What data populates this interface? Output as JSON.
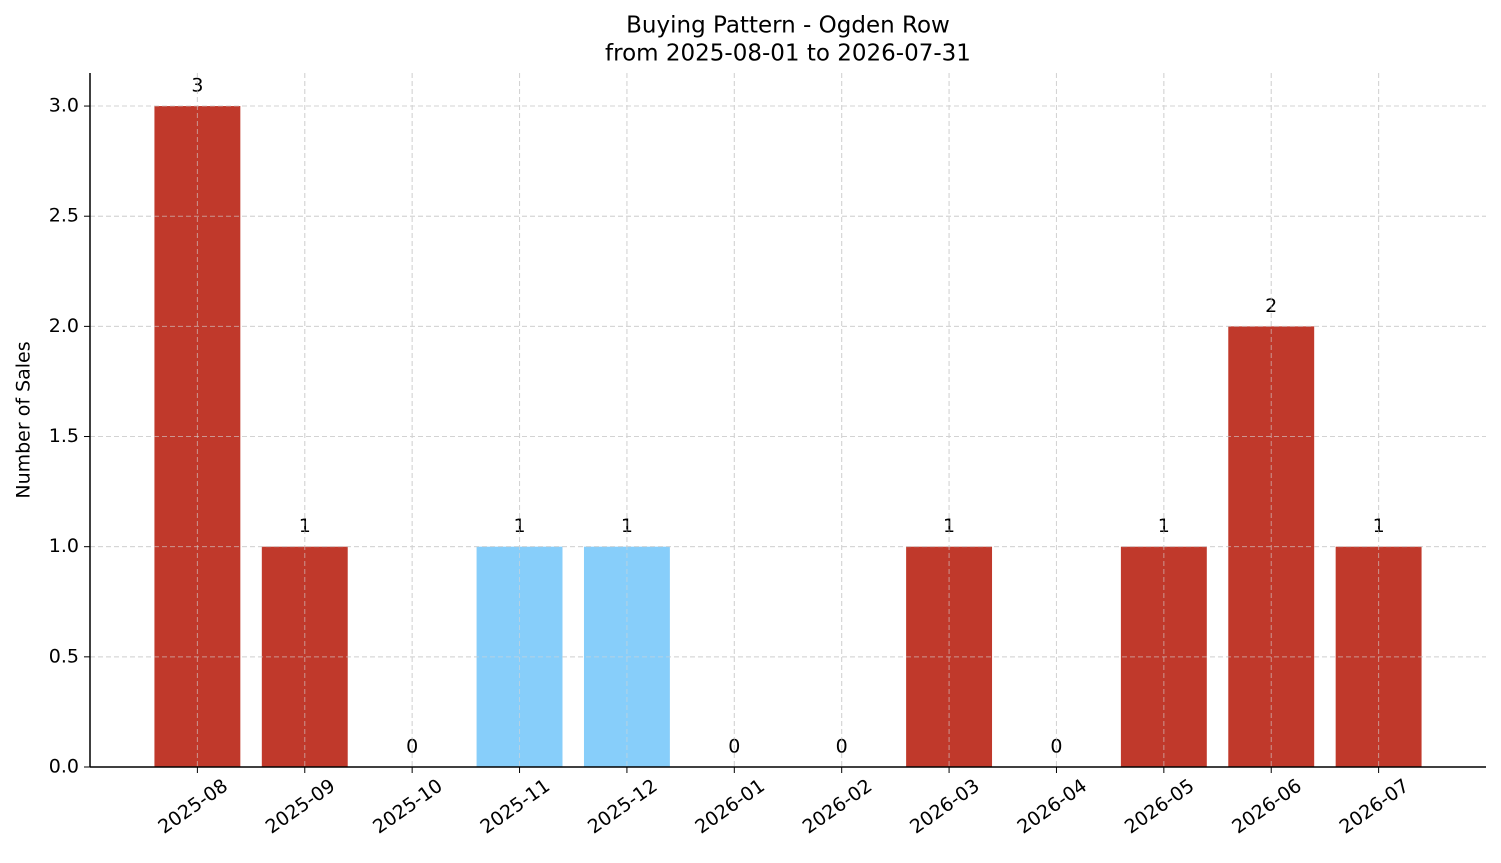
{
  "chart_data": {
    "type": "bar",
    "title": "Buying Pattern - Ogden Row",
    "subtitle": "from 2025-08-01 to 2026-07-31",
    "y_label": "Number of Sales",
    "categories": [
      "2025-08",
      "2025-09",
      "2025-10",
      "2025-11",
      "2025-12",
      "2026-01",
      "2026-02",
      "2026-03",
      "2026-04",
      "2026-05",
      "2026-06",
      "2026-07"
    ],
    "values": [
      3,
      1,
      0,
      1,
      1,
      0,
      0,
      1,
      0,
      1,
      2,
      1
    ],
    "colors": [
      "#c0392b",
      "#c0392b",
      "#c0392b",
      "#87cefa",
      "#87cefa",
      "#c0392b",
      "#c0392b",
      "#c0392b",
      "#c0392b",
      "#c0392b",
      "#c0392b",
      "#c0392b"
    ],
    "ylim": [
      0,
      3.15
    ],
    "yticks": [
      {
        "value": 0,
        "label": "0.0"
      },
      {
        "value": 0.5,
        "label": "0.5"
      },
      {
        "value": 1,
        "label": "1.0"
      },
      {
        "value": 1.5,
        "label": "1.5"
      },
      {
        "value": 2,
        "label": "2.0"
      },
      {
        "value": 2.5,
        "label": "2.5"
      },
      {
        "value": 3,
        "label": "3.0"
      }
    ],
    "grid": true
  }
}
